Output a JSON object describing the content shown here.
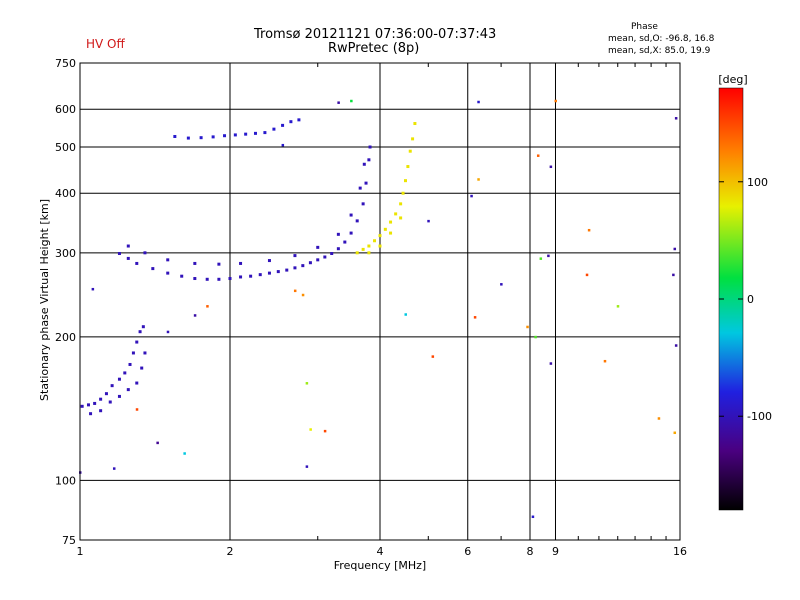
{
  "header": {
    "hv_status": "HV Off",
    "title_line1": "Tromsø 20121121 07:36:00-07:37:43",
    "title_line2": "RwPretec (8p)",
    "phase_title": "Phase",
    "stat_o": "mean, sd,O: -96.8, 16.8",
    "stat_x": "mean, sd,X:  85.0, 19.9"
  },
  "colors": {
    "hv_status": "#d01818",
    "grid": "#000000",
    "o_mode_dominant": "#2a2ad8",
    "x_mode_dominant": "#d8e020"
  },
  "chart_data": {
    "type": "scatter",
    "title": "Tromsø 20121121 07:36:00-07:37:43",
    "subtitle": "RwPretec (8p)",
    "xlabel": "Frequency [MHz]",
    "ylabel": "Stationary phase Virtual Height [km]",
    "x_scale": "log",
    "y_scale": "log",
    "xlim": [
      1,
      16
    ],
    "ylim": [
      75,
      750
    ],
    "x_ticks": [
      1,
      2,
      4,
      6,
      8,
      9,
      16
    ],
    "x_tick_labels": [
      "1",
      "2",
      "4",
      "6",
      "8",
      "9",
      "16"
    ],
    "x_grid": [
      1,
      2,
      4,
      6,
      8,
      9,
      16
    ],
    "y_ticks": [
      75,
      100,
      200,
      300,
      400,
      500,
      600,
      750
    ],
    "y_tick_labels": [
      "75",
      "100",
      "200",
      "300",
      "400",
      "500",
      "600",
      "750"
    ],
    "grid": true,
    "colorbar": {
      "label": "[deg]",
      "range": [
        -180,
        180
      ],
      "ticks": [
        100,
        0,
        -100
      ],
      "tick_labels": [
        "100",
        "0",
        "-100"
      ],
      "position": "right"
    },
    "traces": [
      {
        "name": "",
        "phase": -100,
        "points": [
          [
            1.01,
            143
          ],
          [
            1.04,
            144
          ],
          [
            1.07,
            145
          ],
          [
            1.1,
            148
          ],
          [
            1.13,
            152
          ],
          [
            1.16,
            158
          ],
          [
            1.2,
            163
          ],
          [
            1.23,
            168
          ],
          [
            1.26,
            175
          ],
          [
            1.28,
            185
          ],
          [
            1.3,
            195
          ],
          [
            1.32,
            205
          ],
          [
            1.34,
            210
          ],
          [
            1.05,
            138
          ],
          [
            1.1,
            140
          ],
          [
            1.15,
            146
          ],
          [
            1.2,
            150
          ],
          [
            1.25,
            155
          ],
          [
            1.3,
            160
          ],
          [
            1.33,
            172
          ],
          [
            1.35,
            185
          ]
        ]
      },
      {
        "name": "",
        "phase": -100,
        "points": [
          [
            1.2,
            299
          ],
          [
            1.25,
            292
          ],
          [
            1.3,
            285
          ],
          [
            1.4,
            278
          ],
          [
            1.5,
            272
          ],
          [
            1.6,
            268
          ],
          [
            1.7,
            265
          ],
          [
            1.8,
            264
          ],
          [
            1.9,
            264
          ],
          [
            2.0,
            265
          ],
          [
            2.1,
            267
          ],
          [
            2.2,
            268
          ],
          [
            2.3,
            270
          ],
          [
            2.4,
            272
          ],
          [
            2.5,
            274
          ],
          [
            2.6,
            276
          ],
          [
            2.7,
            279
          ],
          [
            2.8,
            282
          ],
          [
            2.9,
            286
          ],
          [
            3.0,
            290
          ],
          [
            3.1,
            294
          ],
          [
            3.2,
            299
          ],
          [
            3.3,
            306
          ],
          [
            3.4,
            316
          ],
          [
            3.5,
            330
          ],
          [
            3.6,
            350
          ],
          [
            3.7,
            380
          ],
          [
            3.75,
            420
          ],
          [
            3.8,
            470
          ],
          [
            3.82,
            500
          ],
          [
            1.25,
            310
          ],
          [
            1.35,
            300
          ],
          [
            1.5,
            290
          ],
          [
            1.7,
            285
          ],
          [
            1.9,
            284
          ],
          [
            2.1,
            285
          ],
          [
            2.4,
            289
          ],
          [
            2.7,
            296
          ],
          [
            3.0,
            308
          ],
          [
            3.3,
            328
          ],
          [
            3.5,
            360
          ],
          [
            3.65,
            410
          ],
          [
            3.72,
            460
          ]
        ]
      },
      {
        "name": "",
        "phase": -90,
        "points": [
          [
            1.55,
            526
          ],
          [
            1.65,
            522
          ],
          [
            1.75,
            523
          ],
          [
            1.85,
            525
          ],
          [
            1.95,
            528
          ],
          [
            2.05,
            530
          ],
          [
            2.15,
            532
          ],
          [
            2.25,
            534
          ],
          [
            2.35,
            536
          ],
          [
            2.45,
            545
          ],
          [
            2.55,
            555
          ],
          [
            2.65,
            565
          ],
          [
            2.75,
            570
          ]
        ]
      },
      {
        "name": "",
        "phase": 85,
        "points": [
          [
            3.6,
            300
          ],
          [
            3.7,
            305
          ],
          [
            3.8,
            310
          ],
          [
            3.9,
            318
          ],
          [
            4.0,
            326
          ],
          [
            4.1,
            336
          ],
          [
            4.2,
            348
          ],
          [
            4.3,
            362
          ],
          [
            4.4,
            380
          ],
          [
            4.45,
            400
          ],
          [
            4.5,
            425
          ],
          [
            4.55,
            455
          ],
          [
            4.6,
            490
          ],
          [
            4.65,
            520
          ],
          [
            4.7,
            560
          ],
          [
            3.8,
            300
          ],
          [
            4.0,
            310
          ],
          [
            4.2,
            330
          ],
          [
            4.4,
            355
          ]
        ]
      }
    ],
    "scattered_points": [
      [
        1.06,
        252,
        -100
      ],
      [
        2.55,
        505,
        -90
      ],
      [
        3.3,
        620,
        -110
      ],
      [
        3.5,
        625,
        20
      ],
      [
        6.3,
        622,
        -90
      ],
      [
        9.0,
        625,
        130
      ],
      [
        8.3,
        480,
        140
      ],
      [
        8.8,
        455,
        -110
      ],
      [
        6.1,
        395,
        -100
      ],
      [
        6.3,
        428,
        110
      ],
      [
        5.0,
        350,
        -100
      ],
      [
        6.2,
        220,
        150
      ],
      [
        7.0,
        258,
        -100
      ],
      [
        8.4,
        292,
        40
      ],
      [
        8.7,
        296,
        -110
      ],
      [
        10.5,
        335,
        130
      ],
      [
        10.4,
        270,
        150
      ],
      [
        12.0,
        232,
        60
      ],
      [
        8.2,
        200,
        40
      ],
      [
        7.9,
        210,
        120
      ],
      [
        5.1,
        182,
        150
      ],
      [
        8.8,
        176,
        -110
      ],
      [
        11.3,
        178,
        130
      ],
      [
        1.7,
        222,
        -110
      ],
      [
        2.7,
        250,
        130
      ],
      [
        2.8,
        245,
        120
      ],
      [
        4.5,
        223,
        -30
      ],
      [
        1.5,
        205,
        -100
      ],
      [
        1.8,
        232,
        140
      ],
      [
        2.85,
        160,
        60
      ],
      [
        3.1,
        127,
        150
      ],
      [
        2.9,
        128,
        80
      ],
      [
        1.62,
        114,
        -30
      ],
      [
        1.3,
        141,
        150
      ],
      [
        1.43,
        120,
        -120
      ],
      [
        1.17,
        106,
        -100
      ],
      [
        2.85,
        107,
        -100
      ],
      [
        1.0,
        104,
        -110
      ],
      [
        8.1,
        84,
        -90
      ],
      [
        14.5,
        135,
        120
      ],
      [
        15.6,
        126,
        110
      ],
      [
        15.7,
        192,
        -110
      ],
      [
        15.6,
        306,
        -110
      ],
      [
        15.5,
        270,
        -110
      ],
      [
        15.7,
        575,
        -110
      ]
    ]
  }
}
